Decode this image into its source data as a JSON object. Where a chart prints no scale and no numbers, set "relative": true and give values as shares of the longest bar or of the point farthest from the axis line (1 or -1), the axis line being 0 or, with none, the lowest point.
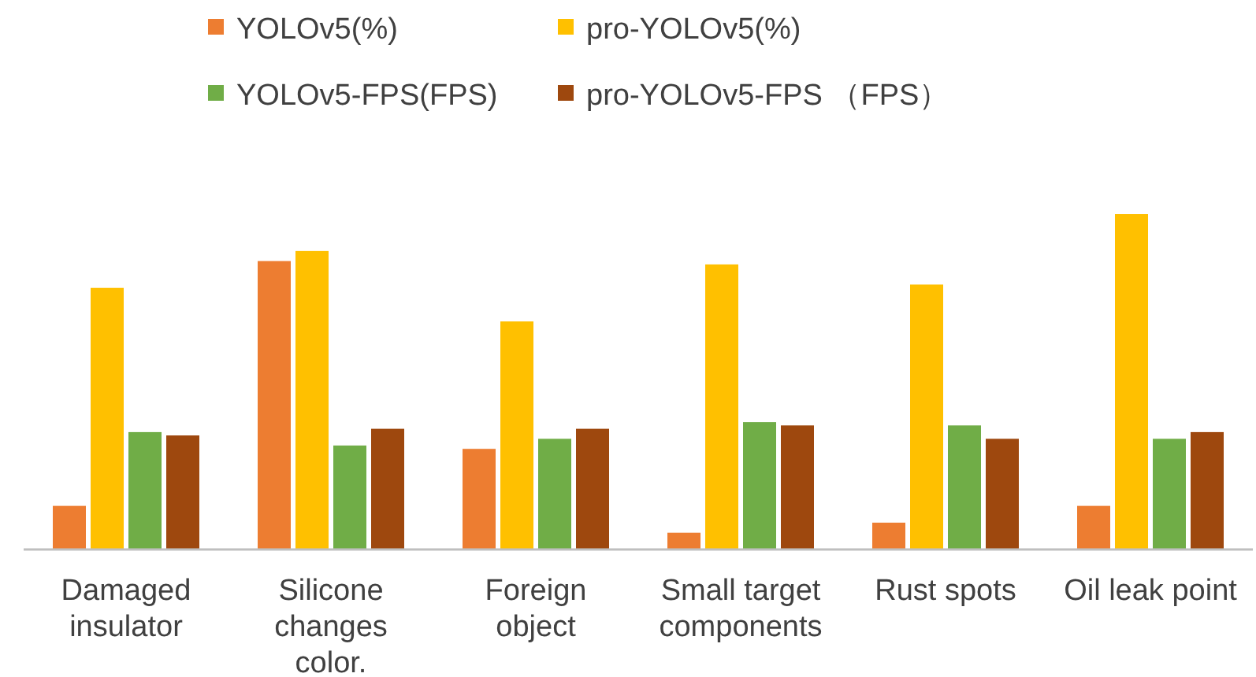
{
  "chart_data": {
    "type": "bar",
    "relative": true,
    "legend": "top",
    "categories": [
      "Damaged insulator",
      "Silicone changes color.",
      "Foreign object",
      "Small target components",
      "Rust spots",
      "Oil leak point"
    ],
    "series": [
      {
        "name": "YOLOv5(%)",
        "color": "#ed7d31",
        "values": [
          0.13,
          0.86,
          0.3,
          0.05,
          0.08,
          0.13
        ]
      },
      {
        "name": "pro-YOLOv5(%)",
        "color": "#ffc000",
        "values": [
          0.78,
          0.89,
          0.68,
          0.85,
          0.79,
          1
        ]
      },
      {
        "name": "YOLOv5-FPS(FPS)",
        "color": "#70ad47",
        "values": [
          0.35,
          0.31,
          0.33,
          0.38,
          0.37,
          0.33
        ]
      },
      {
        "name": "pro-YOLOv5-FPS （FPS）",
        "color": "#9e480e",
        "values": [
          0.34,
          0.36,
          0.36,
          0.37,
          0.33,
          0.35
        ]
      }
    ]
  }
}
